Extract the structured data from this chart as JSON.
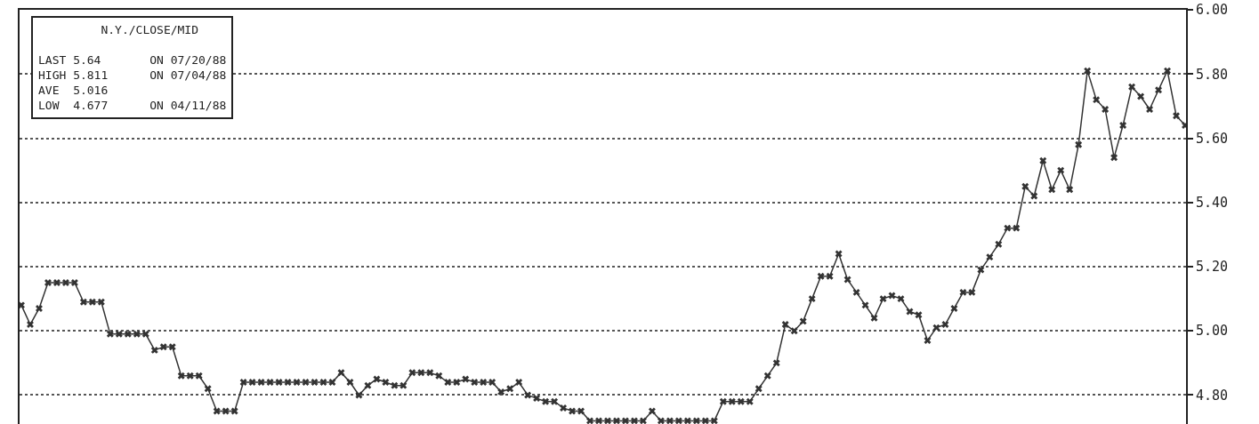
{
  "chart_data": {
    "type": "line",
    "annotations": [
      "N.Y./CLOSE/MID",
      "LAST 5.64       ON 07/20/88",
      "HIGH 5.811      ON 07/04/88",
      "AVE  5.016",
      "LOW  4.677      ON 04/11/88"
    ],
    "categories": [
      null,
      null,
      null,
      null,
      null,
      null,
      null,
      null,
      null,
      null,
      null,
      null,
      null,
      null,
      null,
      null,
      null,
      null,
      null,
      null,
      null,
      null,
      null,
      null,
      null,
      null,
      null,
      null,
      null,
      null,
      null,
      null,
      null,
      null,
      null,
      null,
      null,
      null,
      null,
      null,
      null,
      null,
      null,
      null,
      null,
      null,
      null,
      null,
      null,
      null,
      null,
      null,
      null,
      null,
      null,
      null,
      null,
      null,
      null,
      null,
      null,
      null,
      null,
      null,
      null,
      null,
      null,
      null,
      null,
      null,
      null,
      null,
      null,
      null,
      null,
      null,
      null,
      null,
      null,
      null,
      null,
      null,
      null,
      null,
      null,
      null,
      null,
      null,
      null,
      null,
      null,
      null,
      null,
      null,
      null,
      null,
      null,
      null,
      null,
      null,
      null,
      null,
      null,
      null,
      null,
      null,
      null,
      null,
      null,
      null,
      null,
      null,
      null,
      null,
      null,
      null,
      null,
      null,
      null,
      null,
      null,
      null,
      null,
      null,
      null,
      null,
      null,
      null,
      null,
      null,
      null,
      null
    ],
    "series": [
      {
        "color": "#333333",
        "values": [
          5.08,
          5.02,
          5.07,
          5.15,
          5.15,
          5.15,
          5.15,
          5.09,
          5.09,
          5.09,
          4.99,
          4.99,
          4.99,
          4.99,
          4.99,
          4.94,
          4.95,
          4.95,
          4.86,
          4.86,
          4.86,
          4.82,
          4.75,
          4.75,
          4.75,
          4.84,
          4.84,
          4.84,
          4.84,
          4.84,
          4.84,
          4.84,
          4.84,
          4.84,
          4.84,
          4.84,
          4.87,
          4.84,
          4.8,
          4.83,
          4.85,
          4.84,
          4.83,
          4.83,
          4.87,
          4.87,
          4.87,
          4.86,
          4.84,
          4.84,
          4.85,
          4.84,
          4.84,
          4.84,
          4.81,
          4.82,
          4.84,
          4.8,
          4.79,
          4.78,
          4.78,
          4.76,
          4.75,
          4.75,
          4.72,
          4.72,
          4.72,
          4.72,
          4.72,
          4.72,
          4.72,
          4.75,
          4.72,
          4.72,
          4.72,
          4.72,
          4.72,
          4.72,
          4.72,
          4.78,
          4.78,
          4.78,
          4.78,
          4.82,
          4.86,
          4.9,
          5.02,
          5.0,
          5.03,
          5.1,
          5.17,
          5.17,
          5.24,
          5.16,
          5.12,
          5.08,
          5.04,
          5.1,
          5.11,
          5.1,
          5.06,
          5.05,
          4.97,
          5.01,
          5.02,
          5.07,
          5.12,
          5.12,
          5.19,
          5.23,
          5.27,
          5.32,
          5.32,
          5.45,
          5.42,
          5.53,
          5.44,
          5.5,
          5.44,
          5.58,
          5.81,
          5.72,
          5.69,
          5.54,
          5.64,
          5.76,
          5.73,
          5.69,
          5.75,
          5.81,
          5.67,
          5.64
        ]
      }
    ],
    "ylim": [
      4.71,
      6.0
    ],
    "yticks": [
      {
        "value": 4.8,
        "label": "4.80"
      },
      {
        "value": 5.0,
        "label": "5.00"
      },
      {
        "value": 5.2,
        "label": "5.20"
      },
      {
        "value": 5.4,
        "label": "5.40"
      },
      {
        "value": 5.6,
        "label": "5.60"
      },
      {
        "value": 5.8,
        "label": "5.80"
      },
      {
        "value": 6.0,
        "label": "6.00"
      }
    ],
    "tick_labels": "y",
    "grid": "y",
    "marker": "cross",
    "line_style": "solid"
  }
}
